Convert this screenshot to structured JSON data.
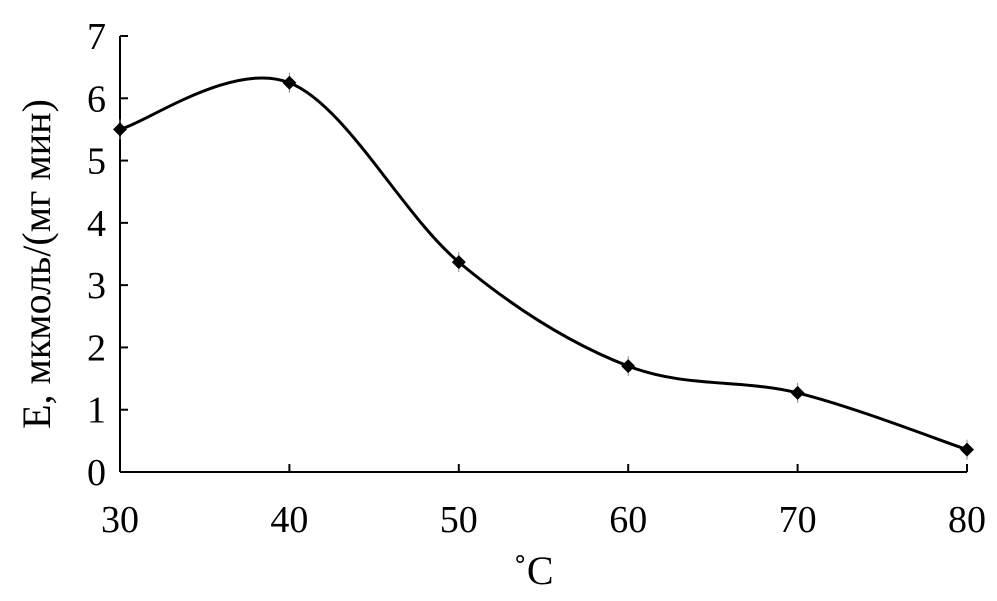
{
  "chart_data": {
    "type": "line",
    "xlabel": "˚C",
    "ylabel": "E, мкмоль/(мг мин)",
    "xlim": [
      30,
      80
    ],
    "ylim": [
      0,
      7
    ],
    "xticks": [
      30,
      40,
      50,
      60,
      70,
      80
    ],
    "yticks": [
      0,
      1,
      2,
      3,
      4,
      5,
      6,
      7
    ],
    "grid": false,
    "series": [
      {
        "marker": "diamond",
        "smooth": true,
        "color": "#000000",
        "x": [
          30,
          40,
          50,
          60,
          70,
          80
        ],
        "y": [
          5.5,
          6.25,
          3.37,
          1.7,
          1.27,
          0.36
        ]
      }
    ]
  }
}
